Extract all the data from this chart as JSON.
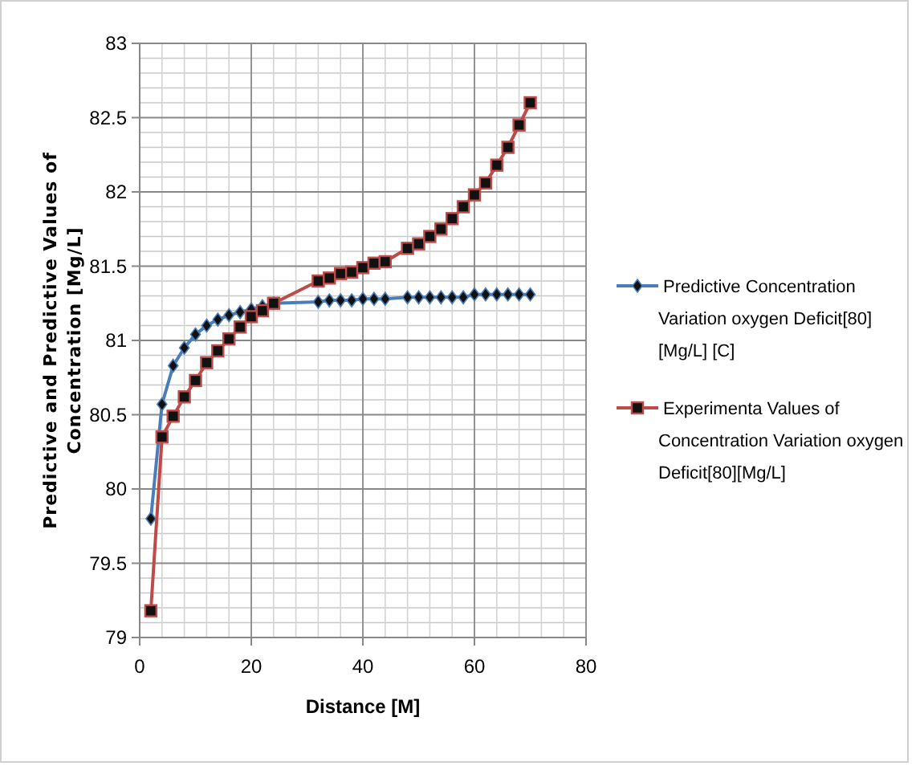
{
  "chart_data": {
    "type": "line",
    "xlabel": "Distance [M]",
    "ylabel": "Predictive and Predictive Values of Concentration [Mg/L]",
    "xlim": [
      0,
      80
    ],
    "xticks": [
      0,
      20,
      40,
      60,
      80
    ],
    "ylim": [
      79,
      83
    ],
    "yticks": [
      79,
      79.5,
      80,
      80.5,
      81,
      81.5,
      82,
      82.5,
      83
    ],
    "grid": true,
    "legend": "right",
    "line_style": "solid",
    "x": [
      2,
      4,
      6,
      8,
      10,
      12,
      14,
      16,
      18,
      20,
      22,
      24,
      32,
      34,
      36,
      38,
      40,
      42,
      44,
      48,
      50,
      52,
      54,
      56,
      58,
      60,
      62,
      64,
      66,
      68,
      70
    ],
    "series": [
      {
        "name": "Predictive Concentration Variation oxygen Deficit[80] [Mg/L] [C]",
        "color": "#4a7ebb",
        "marker": "diamond",
        "values": [
          79.8,
          80.57,
          80.83,
          80.95,
          81.04,
          81.1,
          81.14,
          81.17,
          81.19,
          81.21,
          81.23,
          81.25,
          81.26,
          81.27,
          81.27,
          81.27,
          81.28,
          81.28,
          81.28,
          81.29,
          81.29,
          81.29,
          81.29,
          81.29,
          81.29,
          81.31,
          81.31,
          81.31,
          81.31,
          81.31,
          81.31
        ]
      },
      {
        "name": "Experimenta Values of Concentration Variation oxygen Deficit[80][Mg/L]",
        "color": "#be4b48",
        "marker": "square",
        "values": [
          79.18,
          80.35,
          80.49,
          80.62,
          80.73,
          80.85,
          80.93,
          81.01,
          81.09,
          81.16,
          81.2,
          81.25,
          81.4,
          81.42,
          81.45,
          81.46,
          81.49,
          81.52,
          81.53,
          81.62,
          81.65,
          81.7,
          81.75,
          81.82,
          81.9,
          81.98,
          82.06,
          82.18,
          82.3,
          82.45,
          82.6
        ]
      }
    ]
  }
}
